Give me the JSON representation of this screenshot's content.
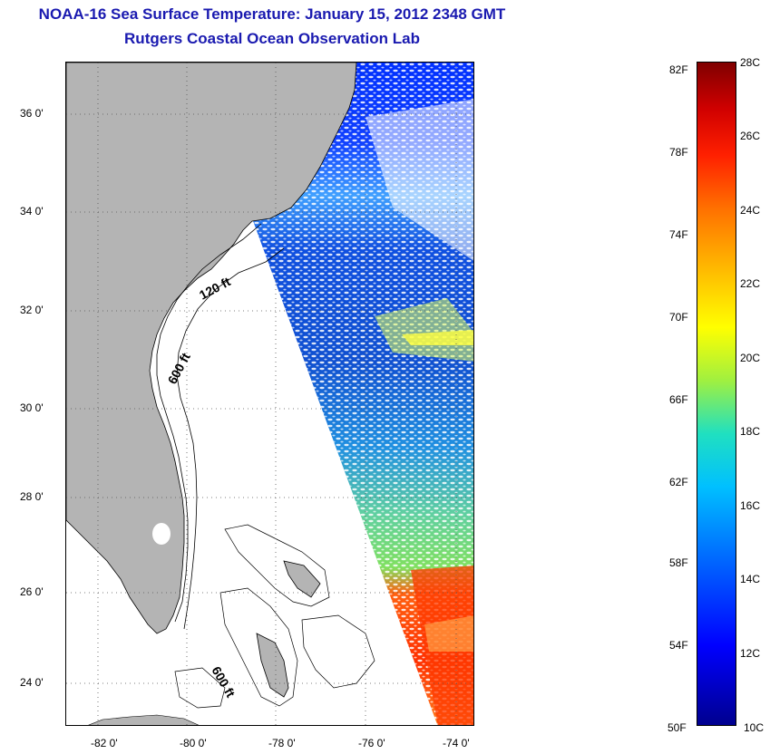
{
  "header": {
    "title_line1": "NOAA-16 Sea Surface Temperature:  January 15, 2012 2348 GMT",
    "title_line2": "Rutgers Coastal Ocean Observation Lab"
  },
  "map": {
    "latitude_labels": [
      "36 0'",
      "34 0'",
      "32 0'",
      "30 0'",
      "28 0'",
      "26 0'",
      "24 0'"
    ],
    "longitude_labels": [
      "-82 0'",
      "-80 0'",
      "-78 0'",
      "-76 0'",
      "-74 0'"
    ],
    "contour_labels": [
      "120 ft",
      "600 ft",
      "600 ft"
    ],
    "land_color": "#b4b4b4",
    "coastline_color": "#000000"
  },
  "colorbar": {
    "fahrenheit_labels": [
      "82F",
      "78F",
      "74F",
      "70F",
      "66F",
      "62F",
      "58F",
      "54F",
      "50F"
    ],
    "celsius_labels": [
      "28C",
      "26C",
      "24C",
      "22C",
      "20C",
      "18C",
      "16C",
      "14C",
      "12C",
      "10C"
    ],
    "gradient_colors": [
      "#00008f",
      "#0000ff",
      "#00c0ff",
      "#a0f040",
      "#ffff00",
      "#ff7000",
      "#d00000",
      "#800000"
    ]
  }
}
